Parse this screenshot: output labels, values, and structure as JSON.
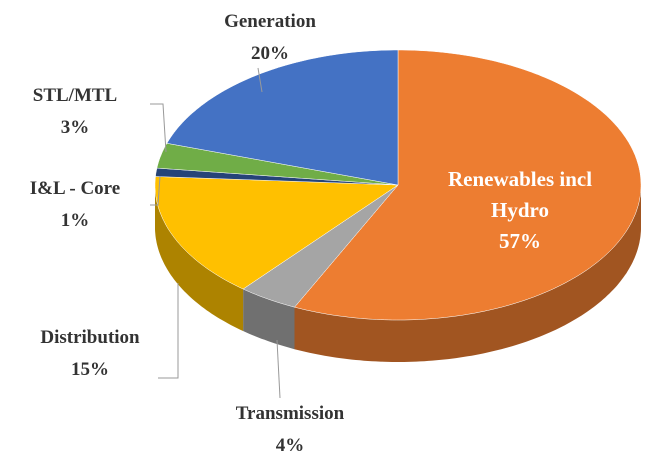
{
  "chart_data": {
    "type": "pie",
    "categories": [
      "Renewables incl Hydro",
      "Transmission",
      "Distribution",
      "I&L - Core",
      "STL/MTL",
      "Generation"
    ],
    "values": [
      57,
      4,
      15,
      1,
      3,
      20
    ],
    "value_labels": [
      "57%",
      "4%",
      "15%",
      "1%",
      "3%",
      "20%"
    ],
    "colors": [
      "#ED7D31",
      "#A5A5A5",
      "#FFC000",
      "#264478",
      "#70AD47",
      "#4472C4"
    ]
  }
}
